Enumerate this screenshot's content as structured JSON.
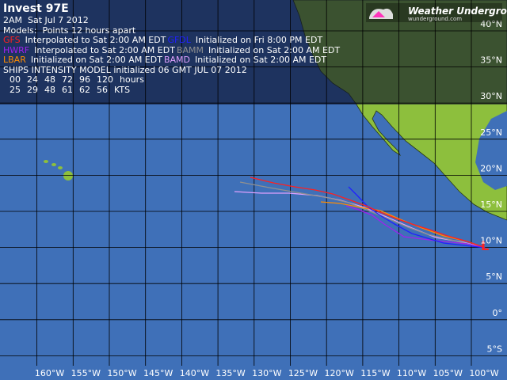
{
  "header": {
    "title": "Invest 97E",
    "date": "2AM  Sat Jul 7 2012",
    "models_note": "Models:  Points 12 hours apart"
  },
  "models": [
    {
      "name": "GFS",
      "color": "#ff2020",
      "text": "Interpolated to Sat 2:00 AM EDT"
    },
    {
      "name": "GFDL",
      "color": "#2020ff",
      "text": "Initialized on Fri 8:00 PM EDT"
    },
    {
      "name": "HWRF",
      "color": "#a020f0",
      "text": "Interpolated to Sat 2:00 AM EDT"
    },
    {
      "name": "BAMM",
      "color": "#909090",
      "text": "Initialized on Sat 2:00 AM EDT"
    },
    {
      "name": "LBAR",
      "color": "#ff8c00",
      "text": "Initialized on Sat 2:00 AM EDT"
    },
    {
      "name": "BAMD",
      "color": "#e0a0ff",
      "text": "Initialized on Sat 2:00 AM EDT"
    }
  ],
  "ships": {
    "title": "SHIPS INTENSITY MODEL initialized 06 GMT JUL 07 2012",
    "hours": [
      "00",
      "24",
      "48",
      "72",
      "96",
      "120"
    ],
    "hours_unit": "hours",
    "kts": [
      "25",
      "29",
      "48",
      "61",
      "62",
      "56"
    ],
    "kts_unit": "KTS"
  },
  "logo": {
    "name": "Weather Underground",
    "url": "wunderground.com"
  },
  "lon_labels": [
    "160°W",
    "155°W",
    "150°W",
    "145°W",
    "140°W",
    "135°W",
    "130°W",
    "125°W",
    "120°W",
    "115°W",
    "110°W",
    "105°W",
    "100°W"
  ],
  "lat_labels": [
    "40°N",
    "35°N",
    "30°N",
    "25°N",
    "20°N",
    "15°N",
    "10°N",
    "5°N",
    "0°",
    "5°S"
  ]
}
